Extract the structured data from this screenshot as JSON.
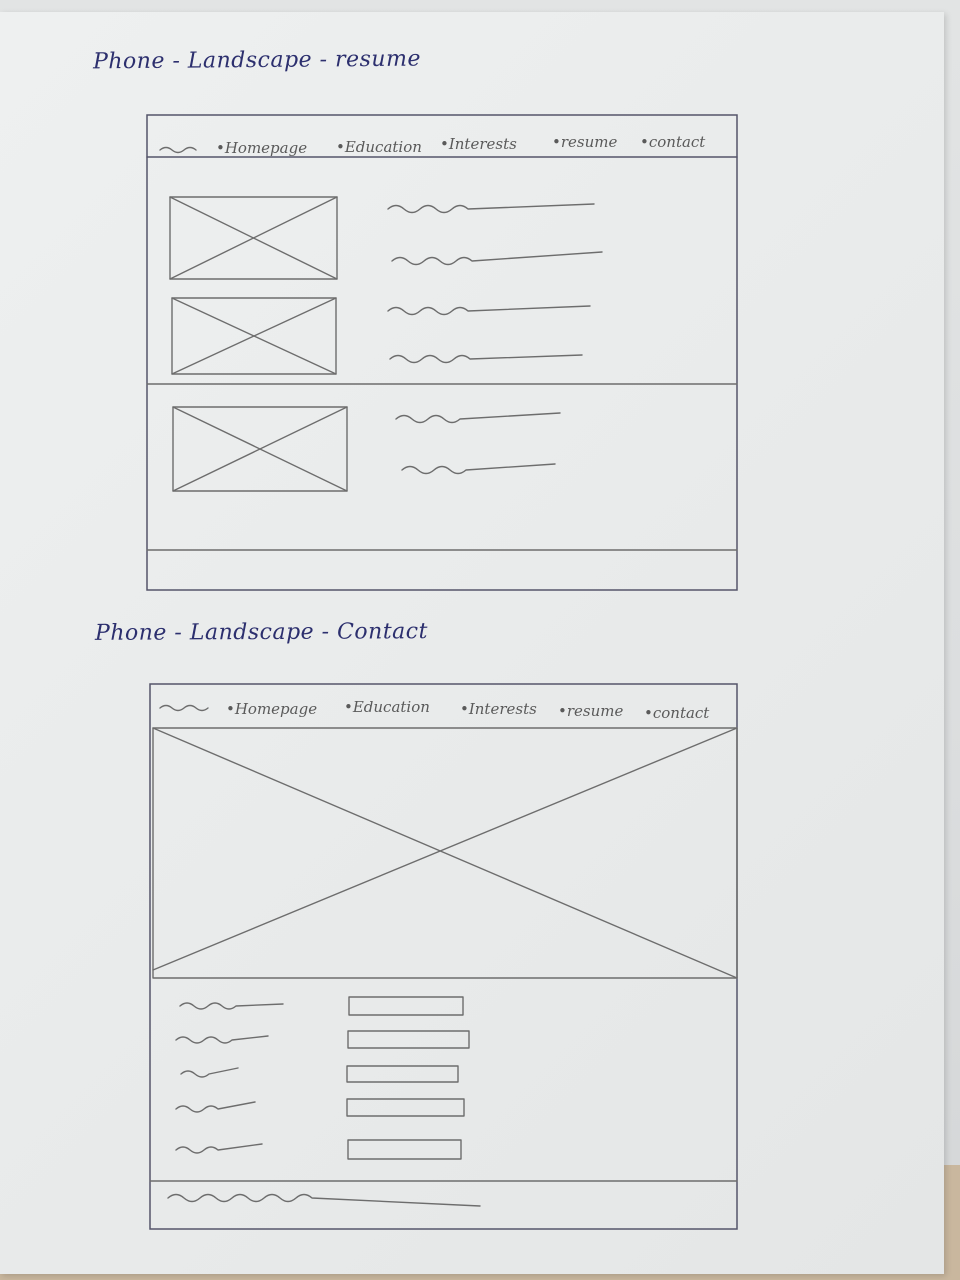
{
  "sketch_1": {
    "title": "Phone - Landscape - resume",
    "nav": [
      "•Homepage",
      "•Education",
      "•Interests",
      "•resume",
      "•contact"
    ]
  },
  "sketch_2": {
    "title": "Phone - Landscape - Contact",
    "nav": [
      "•Homepage",
      "•Education",
      "•Interests",
      "•resume",
      "•contact"
    ]
  }
}
